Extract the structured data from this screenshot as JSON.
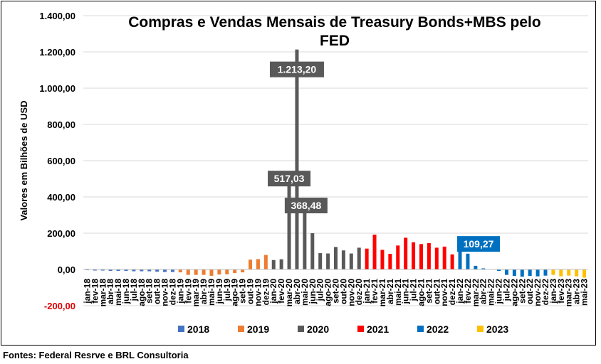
{
  "chart_data": {
    "type": "bar",
    "title_line1": "Compras e Vendas Mensais de Treasury Bonds+MBS pelo",
    "title_line2": "FED",
    "ylabel": "Valores em Bilhões de USD",
    "ylim": [
      -200,
      1400
    ],
    "yticks": [
      {
        "value": 1400,
        "label": "1.400,00",
        "color": "#000000"
      },
      {
        "value": 1200,
        "label": "1.200,00",
        "color": "#000000"
      },
      {
        "value": 1000,
        "label": "1.000,00",
        "color": "#000000"
      },
      {
        "value": 800,
        "label": "800,00",
        "color": "#000000"
      },
      {
        "value": 600,
        "label": "600,00",
        "color": "#000000"
      },
      {
        "value": 400,
        "label": "400,00",
        "color": "#000000"
      },
      {
        "value": 200,
        "label": "200,00",
        "color": "#000000"
      },
      {
        "value": 0,
        "label": "0,00",
        "color": "#000000"
      },
      {
        "value": -200,
        "label": "-200,00",
        "color": "#e00000"
      }
    ],
    "categories": [
      "jan-18",
      "fev-18",
      "mar-18",
      "abr-18",
      "mai-18",
      "jun-18",
      "jul-18",
      "ago-18",
      "set-18",
      "out-18",
      "nov-18",
      "dez-18",
      "jan-19",
      "fev-19",
      "mar-19",
      "abr-19",
      "mai-19",
      "jun-19",
      "jul-19",
      "ago-19",
      "set-19",
      "out-19",
      "nov-19",
      "dez-19",
      "jan-20",
      "fev-20",
      "mar-20",
      "abr-20",
      "mai-20",
      "jun-20",
      "jul-20",
      "ago-20",
      "set-20",
      "out-20",
      "nov-20",
      "dez-20",
      "jan-21",
      "fev-21",
      "mar-21",
      "abr-21",
      "mai-21",
      "jun-21",
      "jul-21",
      "ago-21",
      "set-21",
      "out-21",
      "nov-21",
      "dez-21",
      "jan-22",
      "fev-22",
      "mar-22",
      "abr-22",
      "mai-22",
      "jun-22",
      "jul-22",
      "ago-22",
      "set-22",
      "out-22",
      "nov-22",
      "dez-22",
      "jan-23",
      "fev-23",
      "mar-23",
      "abr-23",
      "mai-23"
    ],
    "series": [
      {
        "name": "2018",
        "color": "#4472c4",
        "values": [
          -4,
          -6,
          -6,
          -8,
          -8,
          -8,
          -10,
          -10,
          -10,
          -12,
          -14,
          -14,
          null,
          null,
          null,
          null,
          null,
          null,
          null,
          null,
          null,
          null,
          null,
          null,
          null,
          null,
          null,
          null,
          null,
          null,
          null,
          null,
          null,
          null,
          null,
          null,
          null,
          null,
          null,
          null,
          null,
          null,
          null,
          null,
          null,
          null,
          null,
          null,
          null,
          null,
          null,
          null,
          null,
          null,
          null,
          null,
          null,
          null,
          null,
          null,
          null,
          null,
          null,
          null,
          null
        ]
      },
      {
        "name": "2019",
        "color": "#ed7d31",
        "values": [
          null,
          null,
          null,
          null,
          null,
          null,
          null,
          null,
          null,
          null,
          null,
          null,
          -16,
          -30,
          -30,
          -30,
          -35,
          -28,
          -27,
          -20,
          -16,
          54,
          57,
          80,
          null,
          null,
          null,
          null,
          null,
          null,
          null,
          null,
          null,
          null,
          null,
          null,
          null,
          null,
          null,
          null,
          null,
          null,
          null,
          null,
          null,
          null,
          null,
          null,
          null,
          null,
          null,
          null,
          null,
          null,
          null,
          null,
          null,
          null,
          null,
          null,
          null,
          null,
          null,
          null,
          null
        ]
      },
      {
        "name": "2020",
        "color": "#595959",
        "values": [
          null,
          null,
          null,
          null,
          null,
          null,
          null,
          null,
          null,
          null,
          null,
          null,
          null,
          null,
          null,
          null,
          null,
          null,
          null,
          null,
          null,
          null,
          null,
          null,
          52,
          56,
          517.03,
          1213.2,
          368.48,
          200,
          90,
          88,
          124,
          105,
          88,
          120,
          null,
          null,
          null,
          null,
          null,
          null,
          null,
          null,
          null,
          null,
          null,
          null,
          null,
          null,
          null,
          null,
          null,
          null,
          null,
          null,
          null,
          null,
          null,
          null,
          null,
          null,
          null,
          null,
          null
        ]
      },
      {
        "name": "2021",
        "color": "#ff0000",
        "values": [
          null,
          null,
          null,
          null,
          null,
          null,
          null,
          null,
          null,
          null,
          null,
          null,
          null,
          null,
          null,
          null,
          null,
          null,
          null,
          null,
          null,
          null,
          null,
          null,
          null,
          null,
          null,
          null,
          null,
          null,
          null,
          null,
          null,
          null,
          null,
          null,
          115,
          192,
          108,
          86,
          132,
          175,
          150,
          140,
          145,
          120,
          126,
          83,
          null,
          null,
          null,
          null,
          null,
          null,
          null,
          null,
          null,
          null,
          null,
          null,
          null,
          null,
          null,
          null,
          null
        ]
      },
      {
        "name": "2022",
        "color": "#0070c0",
        "values": [
          null,
          null,
          null,
          null,
          null,
          null,
          null,
          null,
          null,
          null,
          null,
          null,
          null,
          null,
          null,
          null,
          null,
          null,
          null,
          null,
          null,
          null,
          null,
          null,
          null,
          null,
          null,
          null,
          null,
          null,
          null,
          null,
          null,
          null,
          null,
          null,
          null,
          null,
          null,
          null,
          null,
          null,
          null,
          null,
          null,
          null,
          null,
          null,
          109.27,
          87,
          20,
          6,
          2,
          -8,
          -30,
          -36,
          -40,
          -36,
          -38,
          -34,
          null,
          null,
          null,
          null,
          null
        ]
      },
      {
        "name": "2023",
        "color": "#ffc000",
        "values": [
          null,
          null,
          null,
          null,
          null,
          null,
          null,
          null,
          null,
          null,
          null,
          null,
          null,
          null,
          null,
          null,
          null,
          null,
          null,
          null,
          null,
          null,
          null,
          null,
          null,
          null,
          null,
          null,
          null,
          null,
          null,
          null,
          null,
          null,
          null,
          null,
          null,
          null,
          null,
          null,
          null,
          null,
          null,
          null,
          null,
          null,
          null,
          null,
          null,
          null,
          null,
          null,
          null,
          null,
          null,
          null,
          null,
          null,
          null,
          null,
          -30,
          -38,
          -34,
          -38,
          -45
        ]
      }
    ],
    "data_labels": [
      {
        "category": "abr-20",
        "text": "1.213,20",
        "fill": "#595959"
      },
      {
        "category": "mar-20",
        "text": "517,03",
        "fill": "#595959"
      },
      {
        "category": "mai-20",
        "text": "368,48",
        "fill": "#595959"
      },
      {
        "category": "jan-22",
        "text": "109,27",
        "fill": "#0070c0"
      }
    ],
    "legend_position": "bottom",
    "grid": true
  },
  "footer": "Fontes: Federal Resrve e BRL Consultoria"
}
